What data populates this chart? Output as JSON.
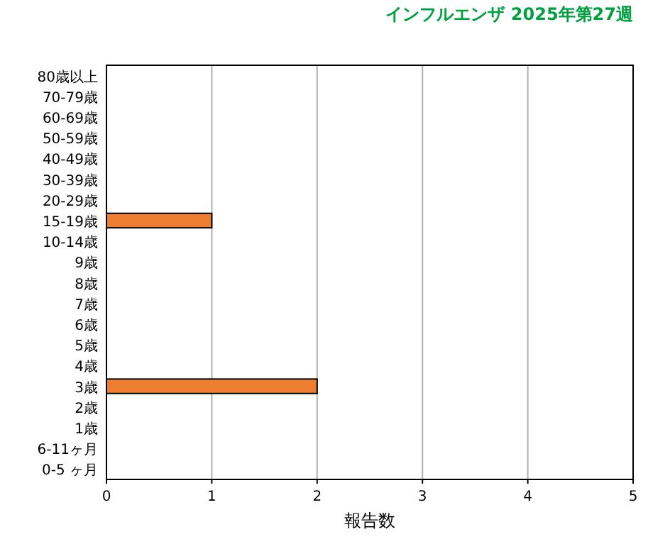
{
  "chart_data": {
    "type": "bar",
    "orientation": "horizontal",
    "title": "インフルエンザ 2025年第27週",
    "xlabel": "報告数",
    "categories": [
      "80歳以上",
      "70-79歳",
      "60-69歳",
      "50-59歳",
      "40-49歳",
      "30-39歳",
      "20-29歳",
      "15-19歳",
      "10-14歳",
      "9歳",
      "8歳",
      "7歳",
      "6歳",
      "5歳",
      "4歳",
      "3歳",
      "2歳",
      "1歳",
      "6-11ヶ月",
      "0-5 ヶ月"
    ],
    "values": [
      0,
      0,
      0,
      0,
      0,
      0,
      0,
      1,
      0,
      0,
      0,
      0,
      0,
      0,
      0,
      2,
      0,
      0,
      0,
      0
    ],
    "color": "#ed7d31",
    "xlim": [
      0,
      5
    ],
    "xticks": [
      0,
      1,
      2,
      3,
      4,
      5
    ],
    "grid": "x"
  }
}
